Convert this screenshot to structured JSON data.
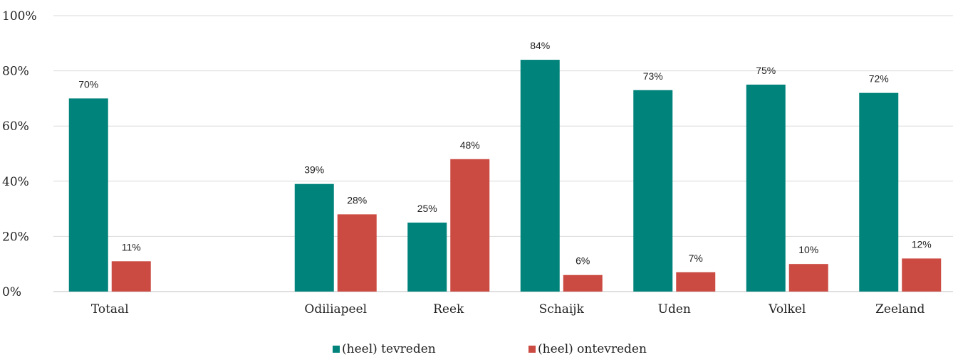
{
  "chart_data": {
    "type": "bar",
    "categories": [
      "Totaal",
      "",
      "Odiliapeel",
      "Reek",
      "Schaijk",
      "Uden",
      "Volkel",
      "Zeeland"
    ],
    "series": [
      {
        "name": "(heel) tevreden",
        "color": "#00837a",
        "values": [
          70,
          null,
          39,
          25,
          84,
          73,
          75,
          72
        ],
        "labels": [
          "70%",
          "",
          "39%",
          "25%",
          "84%",
          "73%",
          "75%",
          "72%"
        ]
      },
      {
        "name": "(heel) ontevreden",
        "color": "#cb4b43",
        "values": [
          11,
          null,
          28,
          48,
          6,
          7,
          10,
          12
        ],
        "labels": [
          "11%",
          "",
          "28%",
          "48%",
          "6%",
          "7%",
          "10%",
          "12%"
        ]
      }
    ],
    "ylim": [
      0,
      100
    ],
    "yticks": [
      "0%",
      "20%",
      "40%",
      "60%",
      "80%",
      "100%"
    ],
    "ytick_values": [
      0,
      20,
      40,
      60,
      80,
      100
    ],
    "grid": true,
    "legend_position": "bottom",
    "title": "",
    "xlabel": "",
    "ylabel": ""
  }
}
